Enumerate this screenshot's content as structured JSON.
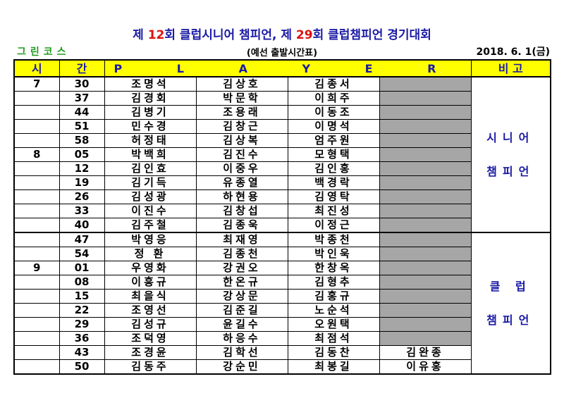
{
  "header": {
    "title_pre": "제 ",
    "title_num1": "12",
    "title_mid": "회 클럽시니어 챔피언, 제 ",
    "title_num2": "29",
    "title_post": "회 클럽챔피언 경기대회",
    "course": "그린코스",
    "subtitle": "(예선 출발시간표)",
    "date": "2018. 6. 1(금)"
  },
  "colors": {
    "title": "#1a1aa6",
    "title_numbers": "#e01010",
    "course": "#1f9b1f",
    "header_bg": "#ffff00",
    "cell_gray": "#a6a6a6"
  },
  "table": {
    "headers": {
      "time_h": "시",
      "time_m": "간",
      "player": "P L A Y E R",
      "remark": "비 고"
    },
    "rows": [
      {
        "hour": "7",
        "min": "30",
        "p1": "조명석",
        "p2": "김상호",
        "p3": "김종서",
        "p4": ""
      },
      {
        "hour": "",
        "min": "37",
        "p1": "김경회",
        "p2": "박문학",
        "p3": "이희주",
        "p4": ""
      },
      {
        "hour": "",
        "min": "44",
        "p1": "김병기",
        "p2": "조용래",
        "p3": "이동조",
        "p4": ""
      },
      {
        "hour": "",
        "min": "51",
        "p1": "민수경",
        "p2": "김창근",
        "p3": "이명석",
        "p4": ""
      },
      {
        "hour": "",
        "min": "58",
        "p1": "허정태",
        "p2": "김상복",
        "p3": "엄주원",
        "p4": ""
      },
      {
        "hour": "8",
        "min": "05",
        "p1": "박백희",
        "p2": "김진수",
        "p3": "모형택",
        "p4": ""
      },
      {
        "hour": "",
        "min": "12",
        "p1": "김인효",
        "p2": "이중우",
        "p3": "김인홍",
        "p4": ""
      },
      {
        "hour": "",
        "min": "19",
        "p1": "김기득",
        "p2": "유종열",
        "p3": "백경락",
        "p4": ""
      },
      {
        "hour": "",
        "min": "26",
        "p1": "김성광",
        "p2": "하현용",
        "p3": "김영탁",
        "p4": ""
      },
      {
        "hour": "",
        "min": "33",
        "p1": "이진수",
        "p2": "김창섭",
        "p3": "최진성",
        "p4": ""
      },
      {
        "hour": "",
        "min": "40",
        "p1": "김주철",
        "p2": "김종욱",
        "p3": "이정근",
        "p4": ""
      },
      {
        "hour": "",
        "min": "47",
        "p1": "박영응",
        "p2": "최재영",
        "p3": "박종천",
        "p4": ""
      },
      {
        "hour": "",
        "min": "54",
        "p1": "정 환",
        "p2": "김종천",
        "p3": "박인욱",
        "p4": ""
      },
      {
        "hour": "9",
        "min": "01",
        "p1": "우영화",
        "p2": "강권오",
        "p3": "한창옥",
        "p4": ""
      },
      {
        "hour": "",
        "min": "08",
        "p1": "이흥규",
        "p2": "한온규",
        "p3": "김형추",
        "p4": ""
      },
      {
        "hour": "",
        "min": "15",
        "p1": "최을식",
        "p2": "강상문",
        "p3": "김홍규",
        "p4": ""
      },
      {
        "hour": "",
        "min": "22",
        "p1": "조영선",
        "p2": "김준길",
        "p3": "노순석",
        "p4": ""
      },
      {
        "hour": "",
        "min": "29",
        "p1": "김성규",
        "p2": "윤길수",
        "p3": "오원택",
        "p4": ""
      },
      {
        "hour": "",
        "min": "36",
        "p1": "조덕영",
        "p2": "하응수",
        "p3": "최점석",
        "p4": ""
      },
      {
        "hour": "",
        "min": "43",
        "p1": "조경윤",
        "p2": "김학선",
        "p3": "김동찬",
        "p4": "김완종"
      },
      {
        "hour": "",
        "min": "50",
        "p1": "김동주",
        "p2": "강순민",
        "p3": "최봉길",
        "p4": "이유홍"
      }
    ],
    "remark_senior_1": "시니어",
    "remark_senior_2": "챔피언",
    "remark_club_1": "클 럽",
    "remark_club_2": "챔피언"
  }
}
